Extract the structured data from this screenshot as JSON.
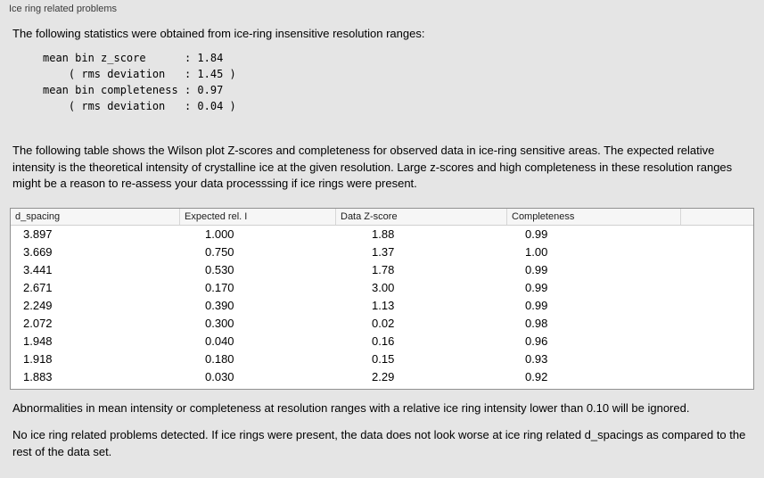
{
  "panel": {
    "title": "Ice ring related problems",
    "intro": "The following statistics were obtained from ice-ring insensitive resolution ranges:",
    "stats_text": "mean bin z_score      : 1.84\n    ( rms deviation   : 1.45 )\nmean bin completeness : 0.97\n    ( rms deviation   : 0.04 )",
    "description": "The following table shows the Wilson plot Z-scores and completeness for observed data in ice-ring sensitive areas. The expected relative intensity is the theoretical intensity of crystalline ice at the given resolution. Large z-scores and high completeness in these resolution ranges might be a reason to re-assess your data processsing if ice rings were present.",
    "ignore_note": "Abnormalities in mean intensity or completeness at resolution ranges with a relative ice ring intensity lower than 0.10 will be ignored.",
    "result_summary": "No ice ring related problems detected. If ice rings were present, the data does not look worse at ice ring related d_spacings as compared to the rest of the data set."
  },
  "table": {
    "columns": [
      "d_spacing",
      "Expected rel. I",
      "Data Z-score",
      "Completeness"
    ],
    "rows": [
      [
        "3.897",
        "1.000",
        "1.88",
        "0.99"
      ],
      [
        "3.669",
        "0.750",
        "1.37",
        "1.00"
      ],
      [
        "3.441",
        "0.530",
        "1.78",
        "0.99"
      ],
      [
        "2.671",
        "0.170",
        "3.00",
        "0.99"
      ],
      [
        "2.249",
        "0.390",
        "1.13",
        "0.99"
      ],
      [
        "2.072",
        "0.300",
        "0.02",
        "0.98"
      ],
      [
        "1.948",
        "0.040",
        "0.16",
        "0.96"
      ],
      [
        "1.918",
        "0.180",
        "0.15",
        "0.93"
      ],
      [
        "1.883",
        "0.030",
        "2.29",
        "0.92"
      ]
    ]
  }
}
